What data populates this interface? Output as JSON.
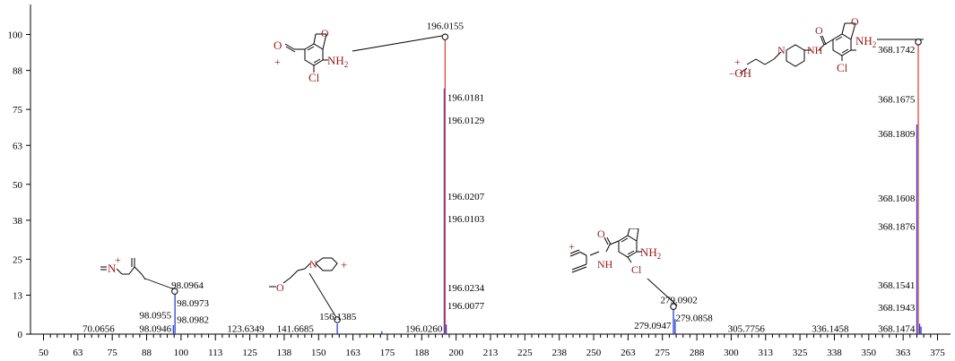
{
  "chart_data": {
    "type": "bar",
    "title": "",
    "xlabel": "",
    "ylabel": "",
    "xlim": [
      50,
      375
    ],
    "ylim": [
      0,
      100
    ],
    "x_ticks": [
      "50",
      "63",
      "75",
      "88",
      "100",
      "113",
      "125",
      "138",
      "150",
      "163",
      "175",
      "188",
      "200",
      "213",
      "225",
      "238",
      "250",
      "263",
      "275",
      "288",
      "300",
      "313",
      "325",
      "338",
      "350",
      "363",
      "375"
    ],
    "y_ticks": [
      "0",
      "13",
      "25",
      "38",
      "50",
      "63",
      "75",
      "88",
      "100"
    ],
    "peaks": [
      {
        "mz": 97.8,
        "intensity": 13.5,
        "color": "#2a3fd6"
      },
      {
        "mz": 97.2,
        "intensity": 3.0,
        "color": "#2a3fd6"
      },
      {
        "mz": 156.8,
        "intensity": 3.5,
        "color": "#2a3fd6"
      },
      {
        "mz": 173.0,
        "intensity": 1.0,
        "color": "#2a3fd6"
      },
      {
        "mz": 195.7,
        "intensity": 82.0,
        "color": "#2a3fd6"
      },
      {
        "mz": 196.0,
        "intensity": 99.2,
        "color": "#e0463c"
      },
      {
        "mz": 196.4,
        "intensity": 3.2,
        "color": "#2a3fd6"
      },
      {
        "mz": 279.0,
        "intensity": 8.5,
        "color": "#2a3fd6"
      },
      {
        "mz": 279.6,
        "intensity": 5.0,
        "color": "#2a3fd6"
      },
      {
        "mz": 367.5,
        "intensity": 70.0,
        "color": "#2a3fd6"
      },
      {
        "mz": 368.0,
        "intensity": 97.5,
        "color": "#e0463c"
      },
      {
        "mz": 368.5,
        "intensity": 3.5,
        "color": "#2a3fd6"
      },
      {
        "mz": 369.0,
        "intensity": 2.5,
        "color": "#2a3fd6"
      }
    ],
    "peak_labels": [
      {
        "text": "196.0155",
        "mz": 196.0,
        "intensity": 103.0,
        "anchor": "middle"
      },
      {
        "text": "196.0181",
        "mz": 196.8,
        "intensity": 79.0,
        "anchor": "start"
      },
      {
        "text": "196.0129",
        "mz": 196.8,
        "intensity": 71.5,
        "anchor": "start"
      },
      {
        "text": "196.0207",
        "mz": 196.8,
        "intensity": 46.0,
        "anchor": "start"
      },
      {
        "text": "196.0103",
        "mz": 196.8,
        "intensity": 38.5,
        "anchor": "start"
      },
      {
        "text": "196.0234",
        "mz": 196.8,
        "intensity": 15.5,
        "anchor": "start"
      },
      {
        "text": "196.0077",
        "mz": 196.8,
        "intensity": 9.5,
        "anchor": "start"
      },
      {
        "text": "196.0260",
        "mz": 195.0,
        "intensity": 2.0,
        "anchor": "end"
      },
      {
        "text": "368.1742",
        "mz": 366.8,
        "intensity": 95.0,
        "anchor": "end"
      },
      {
        "text": "368.1675",
        "mz": 366.8,
        "intensity": 78.5,
        "anchor": "end"
      },
      {
        "text": "368.1809",
        "mz": 366.8,
        "intensity": 67.0,
        "anchor": "end"
      },
      {
        "text": "368.1608",
        "mz": 366.8,
        "intensity": 45.5,
        "anchor": "end"
      },
      {
        "text": "368.1876",
        "mz": 366.8,
        "intensity": 36.0,
        "anchor": "end"
      },
      {
        "text": "368.1541",
        "mz": 366.8,
        "intensity": 16.5,
        "anchor": "end"
      },
      {
        "text": "368.1943",
        "mz": 366.8,
        "intensity": 9.0,
        "anchor": "end"
      },
      {
        "text": "368.1474",
        "mz": 366.8,
        "intensity": 2.0,
        "anchor": "end"
      },
      {
        "text": "98.0964",
        "mz": 96.5,
        "intensity": 16.5,
        "anchor": "start"
      },
      {
        "text": "98.0973",
        "mz": 98.5,
        "intensity": 10.5,
        "anchor": "start"
      },
      {
        "text": "98.0955",
        "mz": 96.5,
        "intensity": 6.5,
        "anchor": "end"
      },
      {
        "text": "98.0982",
        "mz": 98.5,
        "intensity": 5.0,
        "anchor": "start"
      },
      {
        "text": "98.0946",
        "mz": 96.5,
        "intensity": 2.0,
        "anchor": "end"
      },
      {
        "text": "70.0656",
        "mz": 70.0,
        "intensity": 2.0,
        "anchor": "middle"
      },
      {
        "text": "156.1385",
        "mz": 157.0,
        "intensity": 6.0,
        "anchor": "middle"
      },
      {
        "text": "123.6349",
        "mz": 123.5,
        "intensity": 2.0,
        "anchor": "middle"
      },
      {
        "text": "141.6685",
        "mz": 141.5,
        "intensity": 2.0,
        "anchor": "middle"
      },
      {
        "text": "279.0902",
        "mz": 281.0,
        "intensity": 11.5,
        "anchor": "middle"
      },
      {
        "text": "279.0858",
        "mz": 279.8,
        "intensity": 5.5,
        "anchor": "start"
      },
      {
        "text": "279.0947",
        "mz": 278.2,
        "intensity": 3.0,
        "anchor": "end"
      },
      {
        "text": "305.7756",
        "mz": 305.5,
        "intensity": 2.0,
        "anchor": "middle"
      },
      {
        "text": "336.1458",
        "mz": 336.0,
        "intensity": 2.0,
        "anchor": "middle"
      }
    ],
    "markers": [
      {
        "mz": 196.0,
        "intensity": 99.2
      },
      {
        "mz": 368.0,
        "intensity": 97.5
      },
      {
        "mz": 97.7,
        "intensity": 14.3
      },
      {
        "mz": 156.8,
        "intensity": 4.8
      },
      {
        "mz": 279.0,
        "intensity": 9.2
      }
    ]
  },
  "structures": {
    "f196": {
      "carbonyl_o": "O",
      "amine": "NH",
      "amine_sub": "2",
      "chloro": "Cl",
      "charge": "+"
    },
    "f368": {
      "hydroxyl": "OH",
      "charge": "+",
      "carbonyl_o": "O",
      "amide_n": "NH",
      "amine": "NH",
      "amine_sub": "2",
      "chloro": "Cl",
      "ring_n": "N"
    },
    "f98": {
      "iminium_n": "N",
      "charge": "+"
    },
    "f156": {
      "ether_o": "O",
      "ring_n": "N",
      "charge": "+"
    },
    "f279": {
      "charge": "+",
      "carbonyl_o": "O",
      "amide_n": "NH",
      "amine": "NH",
      "amine_sub": "2",
      "chloro": "Cl"
    }
  },
  "colors": {
    "red": "#e0463c",
    "blue": "#2a3fd6",
    "label": "#9b1b1b"
  }
}
